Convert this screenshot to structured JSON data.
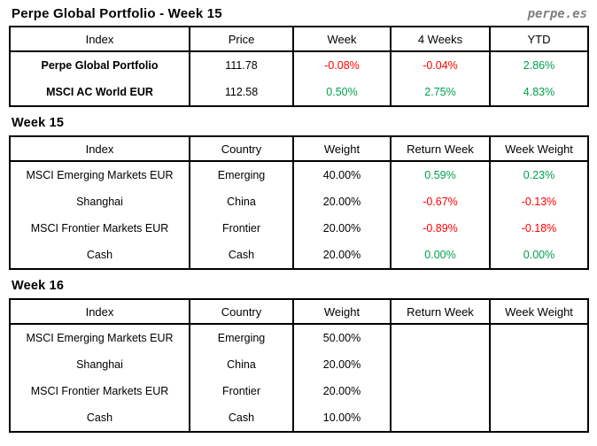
{
  "page": {
    "title": "Perpe Global Portfolio - Week 15",
    "brand": "perpe.es"
  },
  "colors": {
    "positive": "#00A050",
    "negative": "#FF0000",
    "brand": "#808080",
    "border": "#000000"
  },
  "summary": {
    "headers": [
      "Index",
      "Price",
      "Week",
      "4 Weeks",
      "YTD"
    ],
    "value_cols": [
      2,
      3,
      4
    ],
    "emphasis_col": 0,
    "rows": [
      [
        "Perpe Global Portfolio",
        "111.78",
        "-0.08%",
        "-0.04%",
        "2.86%"
      ],
      [
        "MSCI AC World EUR",
        "112.58",
        "0.50%",
        "2.75%",
        "4.83%"
      ]
    ]
  },
  "week15": {
    "heading": "Week 15",
    "headers": [
      "Index",
      "Country",
      "Weight",
      "Return Week",
      "Week Weight"
    ],
    "value_cols": [
      3,
      4
    ],
    "rows": [
      [
        "MSCI Emerging Markets EUR",
        "Emerging",
        "40.00%",
        "0.59%",
        "0.23%"
      ],
      [
        "Shanghai",
        "China",
        "20.00%",
        "-0.67%",
        "-0.13%"
      ],
      [
        "MSCI Frontier Markets EUR",
        "Frontier",
        "20.00%",
        "-0.89%",
        "-0.18%"
      ],
      [
        "Cash",
        "Cash",
        "20.00%",
        "0.00%",
        "0.00%"
      ]
    ]
  },
  "week16": {
    "heading": "Week 16",
    "headers": [
      "Index",
      "Country",
      "Weight",
      "Return Week",
      "Week Weight"
    ],
    "value_cols": [
      3,
      4
    ],
    "rows": [
      [
        "MSCI Emerging Markets EUR",
        "Emerging",
        "50.00%",
        "",
        ""
      ],
      [
        "Shanghai",
        "China",
        "20.00%",
        "",
        ""
      ],
      [
        "MSCI Frontier Markets EUR",
        "Frontier",
        "20.00%",
        "",
        ""
      ],
      [
        "Cash",
        "Cash",
        "10.00%",
        "",
        ""
      ]
    ]
  }
}
